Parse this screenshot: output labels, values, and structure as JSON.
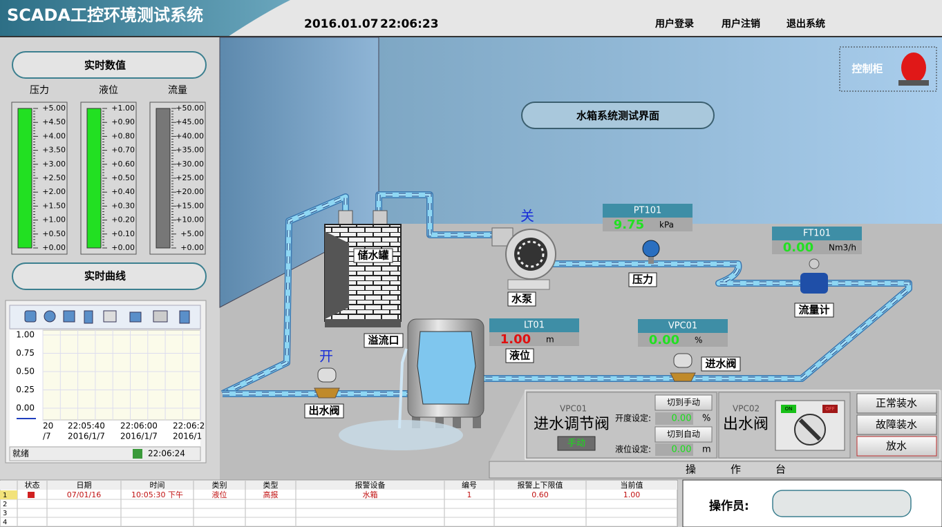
{
  "header": {
    "title": "SCADA工控环境测试系统",
    "date": "2016.01.07",
    "time": "22:06:23",
    "menu": [
      "用户登录",
      "用户注销",
      "退出系统"
    ]
  },
  "left_panel": {
    "realtime_title": "实时数值",
    "gauges": [
      {
        "label": "压力",
        "fill": "#22e022",
        "ticks": [
          "+5.00",
          "+4.50",
          "+4.00",
          "+3.50",
          "+3.00",
          "+2.50",
          "+2.00",
          "+1.50",
          "+1.00",
          "+0.50",
          "+0.00"
        ]
      },
      {
        "label": "液位",
        "fill": "#22e022",
        "ticks": [
          "+1.00",
          "+0.90",
          "+0.80",
          "+0.70",
          "+0.60",
          "+0.50",
          "+0.40",
          "+0.30",
          "+0.20",
          "+0.10",
          "+0.00"
        ]
      },
      {
        "label": "流量",
        "fill": "#777777",
        "ticks": [
          "+50.00",
          "+45.00",
          "+40.00",
          "+35.00",
          "+30.00",
          "+25.00",
          "+20.00",
          "+15.00",
          "+10.00",
          "+5.00",
          "+0.00"
        ]
      }
    ],
    "curve_title": "实时曲线",
    "trend": {
      "yticks": [
        "1.00",
        "0.75",
        "0.50",
        "0.25",
        "0.00"
      ],
      "xlabels": [
        {
          "time": "20",
          "date": "/7"
        },
        {
          "time": "22:05:40",
          "date": "2016/1/7"
        },
        {
          "time": "22:06:00",
          "date": "2016/1/7"
        },
        {
          "time": "22:06:2",
          "date": "2016/1"
        }
      ],
      "status": "就绪",
      "status_time": "22:06:24"
    }
  },
  "scene": {
    "title": "水箱系统测试界面",
    "cabinet": "控制柜",
    "labels": {
      "storage_tank": "储水罐",
      "pump": "水泵",
      "pressure": "压力",
      "flowmeter": "流量计",
      "overflow": "溢流口",
      "level": "液位",
      "inlet_valve": "进水阀",
      "outlet_valve": "出水阀"
    },
    "pump_state": "关",
    "outlet_state": "开",
    "instruments": [
      {
        "tag": "PT101",
        "value": "9.75",
        "unit": "kPa"
      },
      {
        "tag": "FT101",
        "value": "0.00",
        "unit": "Nm3/h"
      },
      {
        "tag": "LT01",
        "value": "1.00",
        "unit": "m"
      },
      {
        "tag": "VPC01",
        "value": "0.00",
        "unit": "%"
      }
    ]
  },
  "control_panel": {
    "vpc01": {
      "tag": "VPC01",
      "name": "进水调节阀",
      "opening_label": "开度设定:",
      "opening_value": "0.00",
      "opening_unit": "%",
      "level_label": "液位设定:",
      "level_value": "0.00",
      "level_unit": "m",
      "btn_manual": "切到手动",
      "btn_auto": "切到自动",
      "mode": "手动"
    },
    "vpc02": {
      "tag": "VPC02",
      "name": "出水阀",
      "on": "ON",
      "off": "OFF"
    },
    "buttons": [
      "正常装水",
      "故障装水",
      "放水"
    ],
    "title": "操作台"
  },
  "alarm_table": {
    "columns": [
      "状态",
      "日期",
      "时间",
      "类别",
      "类型",
      "报警设备",
      "编号",
      "报警上下限值",
      "当前值"
    ],
    "row_numbers": [
      "1",
      "2",
      "3",
      "4"
    ],
    "rows": [
      [
        "07/01/16",
        "10:05:30 下午",
        "液位",
        "高报",
        "水箱",
        "1",
        "0.60",
        "1.00"
      ]
    ]
  },
  "operator": {
    "label": "操作员:"
  }
}
